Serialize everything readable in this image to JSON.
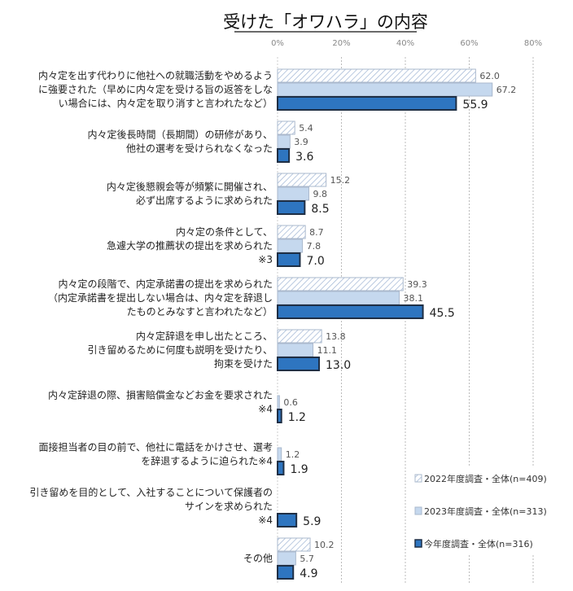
{
  "chart_data": {
    "type": "bar",
    "orientation": "horizontal",
    "title": "受けた「オワハラ」の内容",
    "xlim": [
      0,
      80
    ],
    "xticks": [
      "0%",
      "20%",
      "40%",
      "60%",
      "80%"
    ],
    "grid": true,
    "legend_position": "bottom-right",
    "categories": [
      [
        "内々定を出す代わりに他社への就職活動をやめるよう",
        "に強要された（早めに内々定を受ける旨の返答をしな",
        "い場合には、内々定を取り消すと言われたなど）"
      ],
      [
        "内々定後長時間（長期間）の研修があり、",
        "他社の選考を受けられなくなった"
      ],
      [
        "内々定後懇親会等が頻繁に開催され、",
        "必ず出席するように求められた"
      ],
      [
        "内々定の条件として、",
        "急遽大学の推薦状の提出を求められた",
        "※3"
      ],
      [
        "内々定の段階で、内定承諾書の提出を求められた",
        "（内定承諾書を提出しない場合は、内々定を辞退し",
        "たものとみなすと言われたなど）"
      ],
      [
        "内々定辞退を申し出たところ、",
        "引き留めるために何度も説明を受けたり、",
        "拘束を受けた"
      ],
      [
        "内々定辞退の際、損害賠償金などお金を要求された",
        "※4"
      ],
      [
        "面接担当者の目の前で、他社に電話をかけさせ、選考",
        "を辞退するように迫られた※4"
      ],
      [
        "引き留めを目的として、入社することについて保護者の",
        "サインを求められた",
        "※4"
      ],
      [
        "その他"
      ]
    ],
    "series": [
      {
        "name": "2022年度調査・全体(n=409)",
        "color": "#dfe6f0",
        "pattern": "hatch",
        "values": [
          62.0,
          5.4,
          15.2,
          8.7,
          39.3,
          13.8,
          null,
          null,
          null,
          10.2
        ]
      },
      {
        "name": "2023年度調査・全体(n=313)",
        "color": "#c5d8ee",
        "values": [
          67.2,
          3.9,
          9.8,
          7.8,
          38.1,
          11.1,
          0.6,
          1.2,
          null,
          5.7
        ]
      },
      {
        "name": "今年度調査・全体(n=316)",
        "color": "#2e75c0",
        "values": [
          55.9,
          3.6,
          8.5,
          7.0,
          45.5,
          13.0,
          1.2,
          1.9,
          5.9,
          4.9
        ]
      }
    ]
  }
}
